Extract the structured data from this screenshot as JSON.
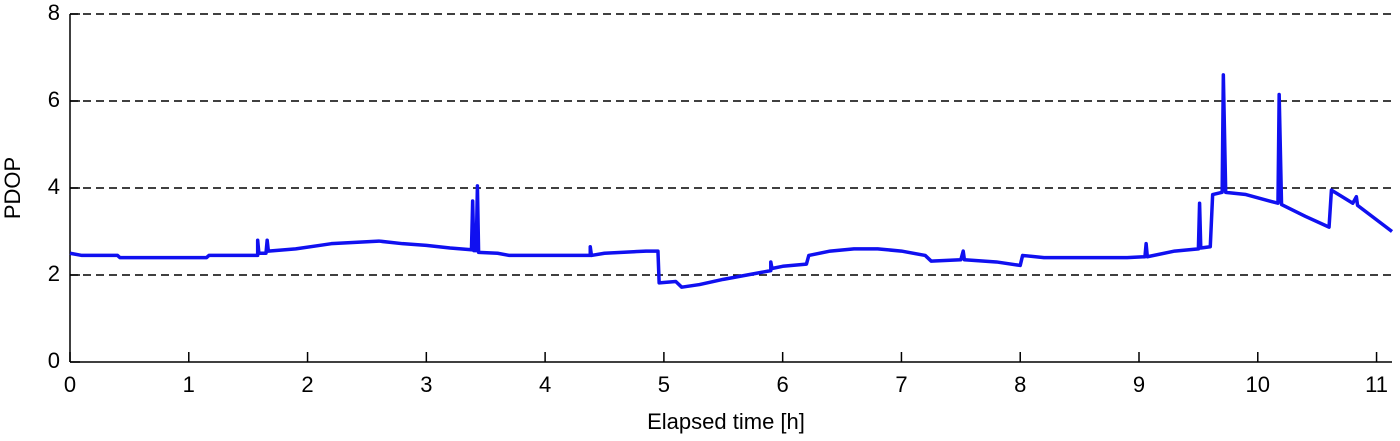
{
  "chart_data": {
    "type": "line",
    "xlabel": "Elapsed time [h]",
    "ylabel": "PDOP",
    "x": [
      0,
      0.1,
      0.4,
      0.42,
      1.15,
      1.17,
      1.58,
      1.58,
      1.59,
      1.65,
      1.66,
      1.67,
      1.9,
      2.1,
      2.2,
      2.4,
      2.6,
      2.8,
      3.0,
      3.2,
      3.38,
      3.39,
      3.4,
      3.42,
      3.43,
      3.44,
      3.6,
      3.7,
      4.0,
      4.38,
      4.38,
      4.39,
      4.5,
      4.85,
      4.95,
      4.96,
      5.1,
      5.15,
      5.3,
      5.5,
      5.7,
      5.9,
      5.9,
      5.91,
      6.0,
      6.2,
      6.22,
      6.4,
      6.6,
      6.8,
      7.0,
      7.2,
      7.25,
      7.5,
      7.52,
      7.53,
      7.8,
      8.0,
      8.02,
      8.2,
      8.9,
      9.05,
      9.06,
      9.07,
      9.3,
      9.5,
      9.51,
      9.52,
      9.6,
      9.62,
      9.7,
      9.71,
      9.73,
      9.9,
      10.1,
      10.17,
      10.18,
      10.2,
      10.4,
      10.6,
      10.62,
      10.8,
      10.83,
      10.84,
      11.13
    ],
    "values": [
      2.5,
      2.45,
      2.45,
      2.4,
      2.4,
      2.45,
      2.45,
      2.8,
      2.5,
      2.5,
      2.8,
      2.55,
      2.6,
      2.68,
      2.72,
      2.75,
      2.78,
      2.72,
      2.68,
      2.62,
      2.58,
      3.7,
      2.56,
      2.56,
      4.05,
      2.52,
      2.5,
      2.45,
      2.45,
      2.45,
      2.65,
      2.45,
      2.5,
      2.55,
      2.55,
      1.82,
      1.85,
      1.72,
      1.78,
      1.9,
      2.0,
      2.1,
      2.3,
      2.15,
      2.2,
      2.25,
      2.45,
      2.55,
      2.6,
      2.6,
      2.55,
      2.45,
      2.32,
      2.35,
      2.55,
      2.35,
      2.3,
      2.22,
      2.45,
      2.4,
      2.4,
      2.42,
      2.72,
      2.42,
      2.55,
      2.6,
      3.65,
      2.62,
      2.65,
      3.85,
      3.9,
      6.6,
      3.9,
      3.85,
      3.7,
      3.65,
      6.15,
      3.62,
      3.35,
      3.1,
      3.95,
      3.65,
      3.8,
      3.6,
      3.0
    ],
    "color": "#1010f0",
    "xlim": [
      0,
      11.13
    ],
    "ylim": [
      0,
      8
    ],
    "xticks": [
      0,
      1,
      2,
      3,
      4,
      5,
      6,
      7,
      8,
      9,
      10,
      11
    ],
    "yticks": [
      0,
      2,
      4,
      6,
      8
    ],
    "grid": true
  }
}
